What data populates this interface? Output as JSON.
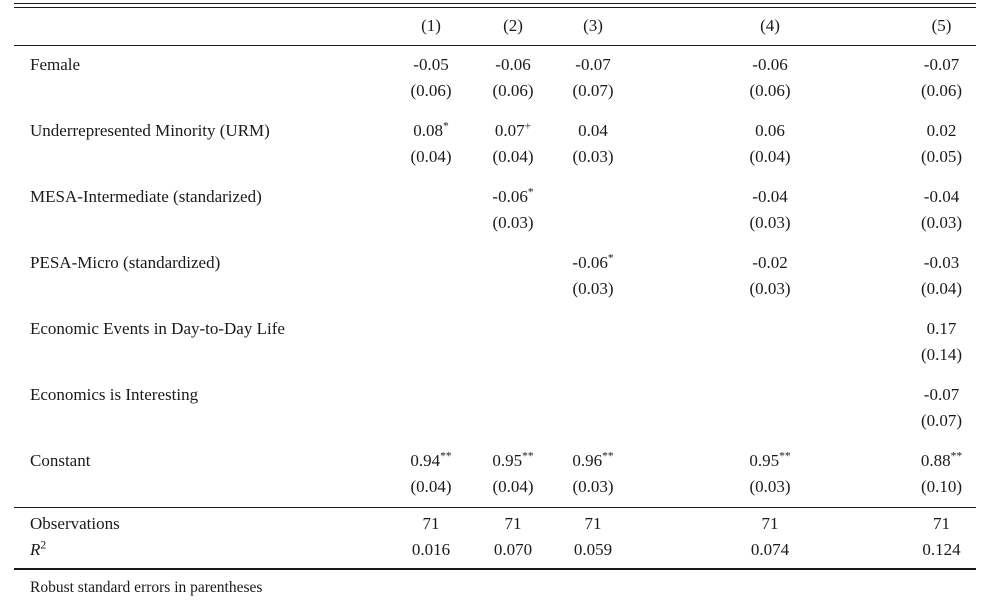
{
  "page": {
    "background": "#ffffff",
    "text_color": "#1a1a1a"
  },
  "table": {
    "header": {
      "labels": [
        "(1)",
        "(2)",
        "(3)",
        "(4)",
        "(5)"
      ]
    },
    "rows": [
      {
        "label": "Female",
        "cells": [
          {
            "coef": "-0.05",
            "sup": "",
            "se": "(0.06)"
          },
          {
            "coef": "-0.06",
            "sup": "",
            "se": "(0.06)"
          },
          {
            "coef": "-0.07",
            "sup": "",
            "se": "(0.07)"
          },
          {
            "coef": "-0.06",
            "sup": "",
            "se": "(0.06)"
          },
          {
            "coef": "-0.07",
            "sup": "",
            "se": "(0.06)"
          }
        ]
      },
      {
        "label": "Underrepresented Minority (URM)",
        "cells": [
          {
            "coef": "0.08",
            "sup": "*",
            "se": "(0.04)"
          },
          {
            "coef": "0.07",
            "sup": "+",
            "se": "(0.04)"
          },
          {
            "coef": "0.04",
            "sup": "",
            "se": "(0.03)"
          },
          {
            "coef": "0.06",
            "sup": "",
            "se": "(0.04)"
          },
          {
            "coef": "0.02",
            "sup": "",
            "se": "(0.05)"
          }
        ]
      },
      {
        "label": "MESA-Intermediate (standarized)",
        "cells": [
          null,
          {
            "coef": "-0.06",
            "sup": "*",
            "se": "(0.03)"
          },
          null,
          {
            "coef": "-0.04",
            "sup": "",
            "se": "(0.03)"
          },
          {
            "coef": "-0.04",
            "sup": "",
            "se": "(0.03)"
          }
        ]
      },
      {
        "label": "PESA-Micro (standardized)",
        "cells": [
          null,
          null,
          {
            "coef": "-0.06",
            "sup": "*",
            "se": "(0.03)"
          },
          {
            "coef": "-0.02",
            "sup": "",
            "se": "(0.03)"
          },
          {
            "coef": "-0.03",
            "sup": "",
            "se": "(0.04)"
          }
        ]
      },
      {
        "label": "Economic Events in Day-to-Day Life",
        "cells": [
          null,
          null,
          null,
          null,
          {
            "coef": "0.17",
            "sup": "",
            "se": "(0.14)"
          }
        ]
      },
      {
        "label": "Economics is Interesting",
        "cells": [
          null,
          null,
          null,
          null,
          {
            "coef": "-0.07",
            "sup": "",
            "se": "(0.07)"
          }
        ]
      },
      {
        "label": "Constant",
        "cells": [
          {
            "coef": "0.94",
            "sup": "**",
            "se": "(0.04)"
          },
          {
            "coef": "0.95",
            "sup": "**",
            "se": "(0.04)"
          },
          {
            "coef": "0.96",
            "sup": "**",
            "se": "(0.03)"
          },
          {
            "coef": "0.95",
            "sup": "**",
            "se": "(0.03)"
          },
          {
            "coef": "0.88",
            "sup": "**",
            "se": "(0.10)"
          }
        ]
      }
    ],
    "stats": [
      {
        "label": "Observations",
        "label_sup": "",
        "italic_label": false,
        "values": [
          "71",
          "71",
          "71",
          "71",
          "71"
        ]
      },
      {
        "label": "R",
        "label_sup": "2",
        "italic_label": true,
        "values": [
          "0.016",
          "0.070",
          "0.059",
          "0.074",
          "0.124"
        ]
      }
    ],
    "footnote": "Robust standard errors in parentheses"
  }
}
